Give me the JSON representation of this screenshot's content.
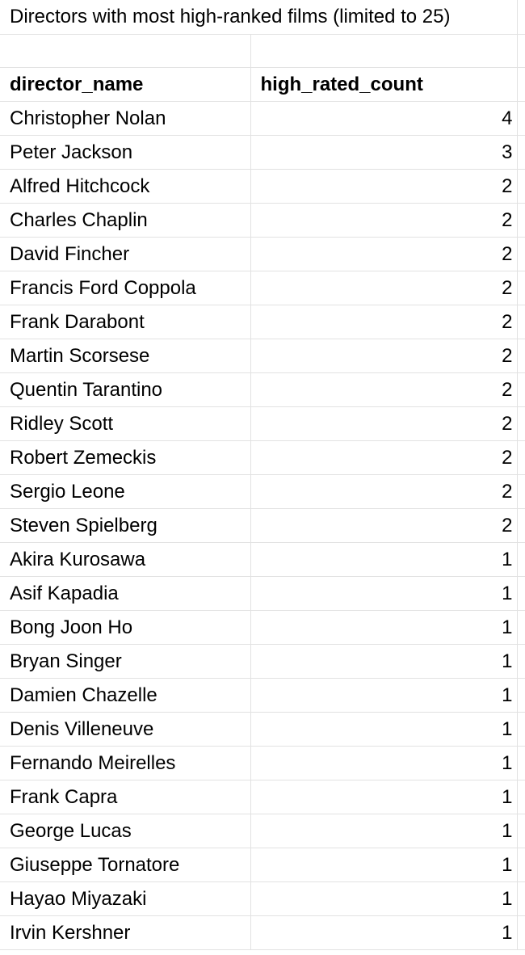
{
  "sheet": {
    "title": "Directors with most high-ranked films (limited to 25)",
    "columns": [
      "director_name",
      "high_rated_count"
    ],
    "rows": [
      {
        "director_name": "Christopher Nolan",
        "high_rated_count": "4"
      },
      {
        "director_name": "Peter Jackson",
        "high_rated_count": "3"
      },
      {
        "director_name": "Alfred Hitchcock",
        "high_rated_count": "2"
      },
      {
        "director_name": "Charles Chaplin",
        "high_rated_count": "2"
      },
      {
        "director_name": "David Fincher",
        "high_rated_count": "2"
      },
      {
        "director_name": "Francis Ford Coppola",
        "high_rated_count": "2"
      },
      {
        "director_name": "Frank Darabont",
        "high_rated_count": "2"
      },
      {
        "director_name": "Martin Scorsese",
        "high_rated_count": "2"
      },
      {
        "director_name": "Quentin Tarantino",
        "high_rated_count": "2"
      },
      {
        "director_name": "Ridley Scott",
        "high_rated_count": "2"
      },
      {
        "director_name": "Robert Zemeckis",
        "high_rated_count": "2"
      },
      {
        "director_name": "Sergio Leone",
        "high_rated_count": "2"
      },
      {
        "director_name": "Steven Spielberg",
        "high_rated_count": "2"
      },
      {
        "director_name": "Akira Kurosawa",
        "high_rated_count": "1"
      },
      {
        "director_name": "Asif Kapadia",
        "high_rated_count": "1"
      },
      {
        "director_name": "Bong Joon Ho",
        "high_rated_count": "1"
      },
      {
        "director_name": "Bryan Singer",
        "high_rated_count": "1"
      },
      {
        "director_name": "Damien Chazelle",
        "high_rated_count": "1"
      },
      {
        "director_name": "Denis Villeneuve",
        "high_rated_count": "1"
      },
      {
        "director_name": "Fernando Meirelles",
        "high_rated_count": "1"
      },
      {
        "director_name": "Frank Capra",
        "high_rated_count": "1"
      },
      {
        "director_name": "George Lucas",
        "high_rated_count": "1"
      },
      {
        "director_name": "Giuseppe Tornatore",
        "high_rated_count": "1"
      },
      {
        "director_name": "Hayao Miyazaki",
        "high_rated_count": "1"
      },
      {
        "director_name": "Irvin Kershner",
        "high_rated_count": "1"
      }
    ]
  },
  "colors": {
    "gridline": "#e2e2e2",
    "text": "#000000",
    "background": "#ffffff"
  }
}
